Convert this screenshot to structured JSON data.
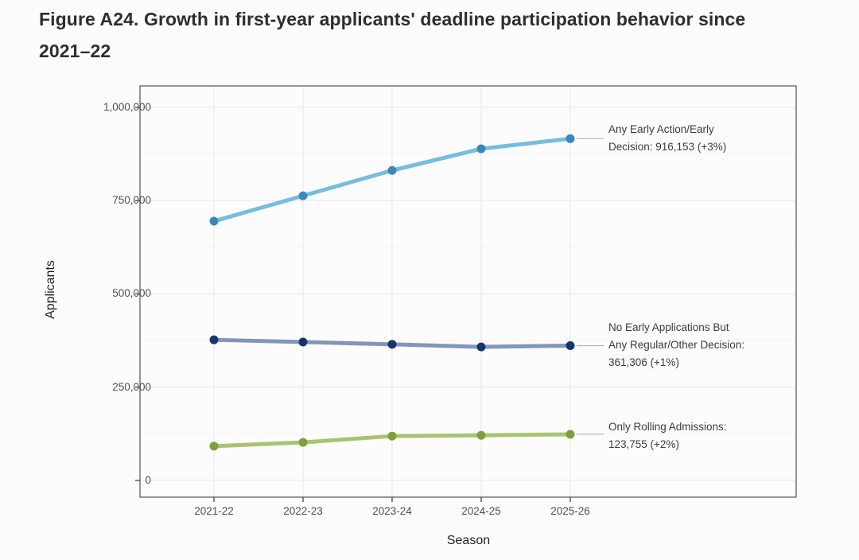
{
  "figure": {
    "title": "Figure A24. Growth in first-year applicants' deadline participation behavior since 2021–22",
    "title_lines": [
      "Figure A24. Growth in first-year applicants' deadline participation behavior since",
      "2021–22"
    ]
  },
  "chart_data": {
    "type": "line",
    "title": "Figure A24. Growth in first-year applicants' deadline participation behavior since 2021–22",
    "xlabel": "Season",
    "ylabel": "Applicants",
    "categories": [
      "2021-22",
      "2022-23",
      "2023-24",
      "2024-25",
      "2025-26"
    ],
    "y_ticks": [
      0,
      250000,
      500000,
      750000,
      1000000
    ],
    "y_tick_labels": [
      "0",
      "250,000",
      "500,000",
      "750,000",
      "1,000,000"
    ],
    "ylim": [
      0,
      1000000
    ],
    "grid": "major horizontal+vertical, minor horizontal at 125,000 steps",
    "legend_position": "right-side annotations with leader lines",
    "series": [
      {
        "name": "Any Early Action/Early Decision",
        "values": [
          695000,
          763000,
          831000,
          889000,
          916153
        ],
        "final_value": "916,153",
        "change": "+3%",
        "line_color": "#76bedd",
        "point_color": "#3a89bd",
        "annotation_lines": [
          "Any Early Action/Early",
          "Decision: 916,153 (+3%)"
        ]
      },
      {
        "name": "No Early Applications But Any Regular/Other Decision",
        "values": [
          377000,
          371000,
          365000,
          358000,
          361306
        ],
        "final_value": "361,306",
        "change": "+1%",
        "line_color": "#8297b7",
        "point_color": "#16356d",
        "annotation_lines": [
          "No Early Applications But",
          "Any Regular/Other Decision:",
          "361,306 (+1%)"
        ]
      },
      {
        "name": "Only Rolling Admissions",
        "values": [
          92000,
          102000,
          119000,
          121000,
          123755
        ],
        "final_value": "123,755",
        "change": "+2%",
        "line_color": "#a9c470",
        "point_color": "#7d9f3c",
        "annotation_lines": [
          "Only Rolling Admissions:",
          "123,755 (+2%)"
        ]
      }
    ]
  }
}
